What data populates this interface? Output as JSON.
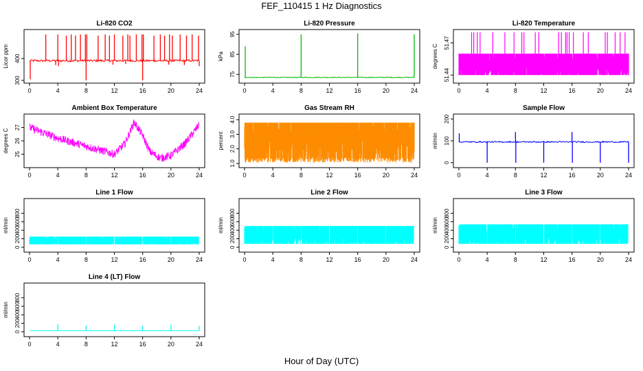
{
  "page": {
    "title": "FEF_110415  1 Hz Diagnostics",
    "xlabel": "Hour of Day (UTC)"
  },
  "chart_data": [
    {
      "type": "line",
      "title": "Li-820 CO2",
      "ylabel": "Licor ppm",
      "color": "#ff0000",
      "xlim": [
        0,
        24
      ],
      "xticks": [
        0,
        4,
        8,
        12,
        16,
        20,
        24
      ],
      "ylim": [
        300,
        520
      ],
      "yticks": [
        300,
        400
      ],
      "ytick_labels": [
        "300",
        "400"
      ],
      "baseline": 390,
      "noise": 5,
      "spikes": [
        [
          0.1,
          305
        ],
        [
          2.3,
          510
        ],
        [
          4.0,
          510
        ],
        [
          4.1,
          365
        ],
        [
          5.2,
          505
        ],
        [
          5.9,
          510
        ],
        [
          6.5,
          505
        ],
        [
          7.2,
          510
        ],
        [
          7.9,
          510
        ],
        [
          8.0,
          300
        ],
        [
          8.1,
          510
        ],
        [
          9.7,
          505
        ],
        [
          10.7,
          510
        ],
        [
          11.3,
          505
        ],
        [
          12.0,
          510
        ],
        [
          13.2,
          505
        ],
        [
          13.9,
          510
        ],
        [
          14.2,
          505
        ],
        [
          15.1,
          510
        ],
        [
          15.9,
          510
        ],
        [
          16.0,
          300
        ],
        [
          16.1,
          510
        ],
        [
          17.6,
          505
        ],
        [
          18.5,
          510
        ],
        [
          19.1,
          505
        ],
        [
          19.8,
          510
        ],
        [
          20.2,
          505
        ],
        [
          21.3,
          510
        ],
        [
          22.2,
          505
        ],
        [
          23.0,
          510
        ],
        [
          23.9,
          505
        ],
        [
          24.0,
          365
        ]
      ],
      "dips": [
        [
          3.7,
          370
        ],
        [
          11.8,
          372
        ],
        [
          19.7,
          372
        ],
        [
          21.9,
          370
        ],
        [
          13.6,
          375
        ]
      ]
    },
    {
      "type": "line",
      "title": "Li-820 Pressure",
      "ylabel": "kPa",
      "color": "#00bb00",
      "xlim": [
        0,
        24
      ],
      "xticks": [
        0,
        4,
        8,
        12,
        16,
        20,
        24
      ],
      "ylim": [
        72,
        96
      ],
      "yticks": [
        75,
        85,
        95
      ],
      "ytick_labels": [
        "75",
        "85",
        "95"
      ],
      "baseline": 73.5,
      "noise": 0.2,
      "spikes": [
        [
          0.1,
          89
        ],
        [
          8.0,
          95
        ],
        [
          16.0,
          95.5
        ],
        [
          24.0,
          95
        ]
      ],
      "dips": []
    },
    {
      "type": "area",
      "title": "Li-820 Temperature",
      "ylabel": "degrees C",
      "color": "#ff00ff",
      "xlim": [
        0,
        24
      ],
      "xticks": [
        0,
        4,
        8,
        12,
        16,
        20,
        24
      ],
      "ylim": [
        51.435,
        51.48
      ],
      "yticks": [
        51.44,
        51.47
      ],
      "ytick_labels": [
        "51.44",
        "51.47"
      ],
      "band": [
        51.44,
        51.46
      ],
      "spikes": [
        [
          1.8,
          51.48
        ],
        [
          2.1,
          51.48
        ],
        [
          2.6,
          51.48
        ],
        [
          3.0,
          51.48
        ],
        [
          4.8,
          51.48
        ],
        [
          6.5,
          51.48
        ],
        [
          7.8,
          51.48
        ],
        [
          8.9,
          51.48
        ],
        [
          9.2,
          51.48
        ],
        [
          10.8,
          51.48
        ],
        [
          11.3,
          51.48
        ],
        [
          14.1,
          51.48
        ],
        [
          14.5,
          51.48
        ],
        [
          15.1,
          51.48
        ],
        [
          15.3,
          51.48
        ],
        [
          15.6,
          51.48
        ],
        [
          16.2,
          51.48
        ],
        [
          17.6,
          51.48
        ],
        [
          18.3,
          51.48
        ],
        [
          20.7,
          51.48
        ],
        [
          21.0,
          51.48
        ],
        [
          22.1,
          51.48
        ],
        [
          22.8,
          51.48
        ],
        [
          23.5,
          51.48
        ]
      ]
    },
    {
      "type": "line",
      "title": "Ambient Box Temperature",
      "ylabel": "degrees C",
      "color": "#ff00ff",
      "xlim": [
        0,
        24
      ],
      "xticks": [
        0,
        4,
        8,
        12,
        16,
        20,
        24
      ],
      "ylim": [
        24.2,
        27.8
      ],
      "yticks": [
        25,
        26,
        27
      ],
      "ytick_labels": [
        "25",
        "26",
        "27"
      ],
      "curve": [
        [
          0,
          27.0
        ],
        [
          2,
          26.6
        ],
        [
          4,
          26.2
        ],
        [
          6,
          25.9
        ],
        [
          8,
          25.6
        ],
        [
          10,
          25.3
        ],
        [
          12,
          25.0
        ],
        [
          13.5,
          25.8
        ],
        [
          14.8,
          27.4
        ],
        [
          16,
          26.4
        ],
        [
          17,
          25.2
        ],
        [
          18.5,
          24.7
        ],
        [
          20,
          24.9
        ],
        [
          22,
          25.8
        ],
        [
          24,
          27.2
        ]
      ],
      "noise": 0.3
    },
    {
      "type": "area",
      "title": "Gas Stream RH",
      "ylabel": "percent",
      "color": "#ff8c00",
      "secondary_color": "#bba000",
      "xlim": [
        0,
        24
      ],
      "xticks": [
        0,
        4,
        8,
        12,
        16,
        20,
        24
      ],
      "ylim": [
        0.9,
        4.2
      ],
      "yticks": [
        1.0,
        2.0,
        3.0,
        4.0
      ],
      "ytick_labels": [
        "1.0",
        "2.0",
        "3.0",
        "4.0"
      ],
      "band": [
        1.4,
        3.8
      ]
    },
    {
      "type": "line",
      "title": "Sample Flow",
      "ylabel": "ml/min",
      "color": "#0000ff",
      "xlim": [
        0,
        24
      ],
      "xticks": [
        0,
        4,
        8,
        12,
        16,
        20,
        24
      ],
      "ylim": [
        -10,
        210
      ],
      "yticks": [
        0,
        100,
        200
      ],
      "ytick_labels": [
        "0",
        "100",
        "200"
      ],
      "baseline": 95,
      "noise": 3,
      "spikes": [
        [
          0.05,
          135
        ],
        [
          8.0,
          140
        ],
        [
          16.0,
          140
        ]
      ],
      "dips": [
        [
          4.0,
          0
        ],
        [
          8.05,
          0
        ],
        [
          12.0,
          0
        ],
        [
          16.05,
          0
        ],
        [
          20.0,
          0
        ],
        [
          24.0,
          0
        ]
      ]
    },
    {
      "type": "area",
      "title": "Line 1 Flow",
      "ylabel": "ml/min",
      "color": "#00ffff",
      "xlim": [
        0,
        24
      ],
      "xticks": [
        0,
        4,
        8,
        12,
        16,
        20,
        24
      ],
      "ylim": [
        -50,
        1080
      ],
      "yticks": [
        0,
        200,
        400,
        600,
        800
      ],
      "ytick_labels": [
        "0",
        "200",
        "400",
        "600",
        "800"
      ],
      "band": [
        70,
        250
      ],
      "gaps": [
        4.0,
        8.0,
        12.0,
        16.0,
        20.0,
        24.0
      ]
    },
    {
      "type": "area",
      "title": "Line 2 Flow",
      "ylabel": "ml/min",
      "color": "#00ffff",
      "xlim": [
        0,
        24
      ],
      "xticks": [
        0,
        4,
        8,
        12,
        16,
        20,
        24
      ],
      "ylim": [
        -50,
        1080
      ],
      "yticks": [
        0,
        200,
        400,
        600,
        800
      ],
      "ytick_labels": [
        "0",
        "200",
        "400",
        "600",
        "800"
      ],
      "band": [
        80,
        500
      ],
      "gaps": [
        4.0,
        8.0,
        12.0,
        16.0,
        20.0,
        24.0
      ]
    },
    {
      "type": "area",
      "title": "Line 3 Flow",
      "ylabel": "ml/min",
      "color": "#00ffff",
      "xlim": [
        0,
        24
      ],
      "xticks": [
        0,
        4,
        8,
        12,
        16,
        20,
        24
      ],
      "ylim": [
        -50,
        1080
      ],
      "yticks": [
        0,
        200,
        400,
        600,
        800
      ],
      "ytick_labels": [
        "0",
        "200",
        "400",
        "600",
        "800"
      ],
      "band": [
        80,
        540
      ],
      "gaps": [
        4.0,
        8.0,
        12.0,
        16.0,
        20.0,
        24.0
      ]
    },
    {
      "type": "line",
      "title": "Line 4 (LT) Flow",
      "ylabel": "ml/min",
      "color": "#00ffff",
      "xlim": [
        0,
        24
      ],
      "xticks": [
        0,
        4,
        8,
        12,
        16,
        20,
        24
      ],
      "ylim": [
        -50,
        1080
      ],
      "yticks": [
        0,
        200,
        400,
        600,
        800
      ],
      "ytick_labels": [
        "0",
        "200",
        "400",
        "600",
        "800"
      ],
      "baseline": 25,
      "noise": 2,
      "spikes": [
        [
          4.0,
          180
        ],
        [
          8.0,
          150
        ],
        [
          12.0,
          170
        ],
        [
          16.0,
          140
        ],
        [
          20.0,
          170
        ],
        [
          24.0,
          140
        ]
      ],
      "dips": []
    }
  ]
}
